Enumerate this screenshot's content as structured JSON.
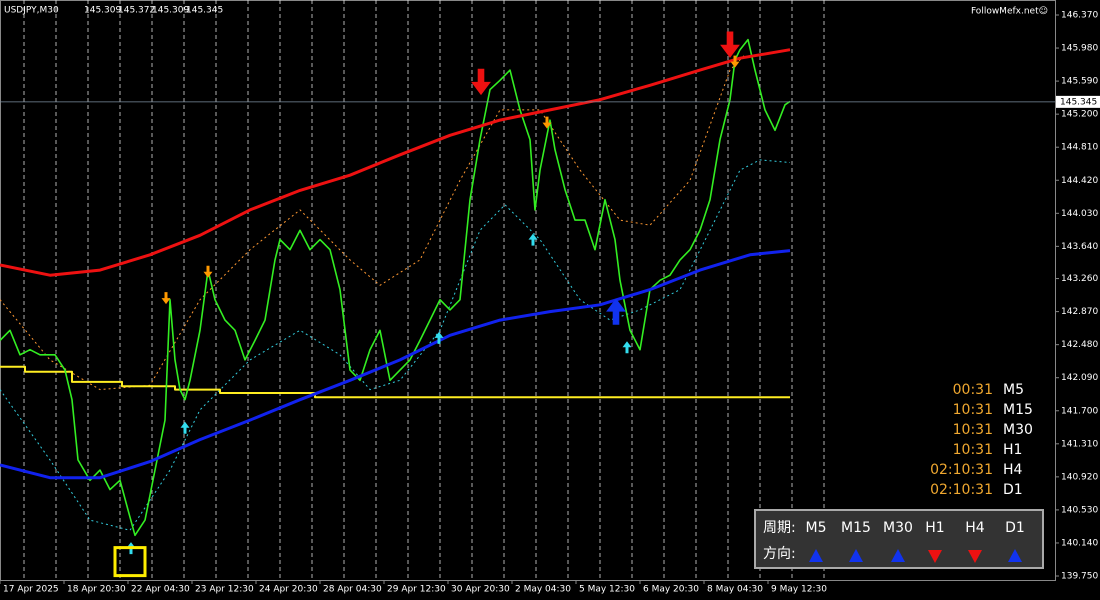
{
  "chart_data": {
    "type": "line",
    "symbol": "USDJPY,M30",
    "ohlc": [
      145.309,
      145.372,
      145.309,
      145.345
    ],
    "watermark": "FollowMefx.net☺",
    "current_price": 145.345,
    "xlim": [
      0,
      1055
    ],
    "ylim": [
      139.703,
      146.547
    ],
    "grid": true,
    "xticks": [
      {
        "value": 0,
        "label": "17 Apr 2025"
      },
      {
        "value": 64,
        "label": "18 Apr 20:30"
      },
      {
        "value": 128,
        "label": "22 Apr 04:30"
      },
      {
        "value": 192,
        "label": "23 Apr 12:30"
      },
      {
        "value": 256,
        "label": "24 Apr 20:30"
      },
      {
        "value": 320,
        "label": "28 Apr 04:30"
      },
      {
        "value": 384,
        "label": "29 Apr 12:30"
      },
      {
        "value": 448,
        "label": "30 Apr 20:30"
      },
      {
        "value": 512,
        "label": "2 May 04:30"
      },
      {
        "value": 576,
        "label": "5 May 12:30"
      },
      {
        "value": 640,
        "label": "6 May 20:30"
      },
      {
        "value": 704,
        "label": "8 May 04:30"
      },
      {
        "value": 768,
        "label": "9 May 12:30"
      }
    ],
    "yticks": [
      {
        "value": 146.37,
        "label": "146.370"
      },
      {
        "value": 145.98,
        "label": "145.980"
      },
      {
        "value": 145.59,
        "label": "145.590"
      },
      {
        "value": 145.2,
        "label": "145.200"
      },
      {
        "value": 144.81,
        "label": "144.810"
      },
      {
        "value": 144.42,
        "label": "144.420"
      },
      {
        "value": 144.03,
        "label": "144.030"
      },
      {
        "value": 143.64,
        "label": "143.640"
      },
      {
        "value": 143.26,
        "label": "143.260"
      },
      {
        "value": 142.87,
        "label": "142.870"
      },
      {
        "value": 142.48,
        "label": "142.480"
      },
      {
        "value": 142.09,
        "label": "142.090"
      },
      {
        "value": 141.7,
        "label": "141.700"
      },
      {
        "value": 141.31,
        "label": "141.310"
      },
      {
        "value": 140.92,
        "label": "140.920"
      },
      {
        "value": 140.53,
        "label": "140.530"
      },
      {
        "value": 140.14,
        "label": "140.140"
      },
      {
        "value": 139.75,
        "label": "139.750"
      }
    ],
    "series": [
      {
        "color": "#ff9933",
        "style": "dotted",
        "x": [
          0,
          50,
          100,
          150,
          200,
          250,
          300,
          350,
          380,
          420,
          460,
          500,
          540,
          580,
          620,
          650,
          690,
          730,
          745
        ],
        "values": [
          143.01,
          142.3,
          141.95,
          142.0,
          143.01,
          143.6,
          144.07,
          143.48,
          143.18,
          143.48,
          144.42,
          145.25,
          145.25,
          144.54,
          143.95,
          143.89,
          144.42,
          145.72,
          145.9
        ]
      },
      {
        "color": "#33ccdd",
        "style": "dotted",
        "x": [
          0,
          50,
          90,
          130,
          170,
          200,
          250,
          300,
          340,
          370,
          400,
          440,
          480,
          505,
          540,
          580,
          610,
          640,
          680,
          710,
          740,
          760,
          790
        ],
        "values": [
          141.95,
          141.12,
          140.41,
          140.29,
          141.0,
          141.71,
          142.3,
          142.65,
          142.36,
          141.95,
          142.06,
          142.65,
          143.83,
          144.13,
          143.72,
          143.01,
          142.77,
          142.89,
          143.13,
          143.83,
          144.54,
          144.66,
          144.63
        ]
      },
      {
        "color": "#ffee22",
        "style": "solid",
        "x": [
          0,
          25,
          25,
          72,
          72,
          122,
          122,
          175,
          175,
          220,
          220,
          315,
          315,
          790
        ],
        "values": [
          142.22,
          142.22,
          142.16,
          142.16,
          142.04,
          142.04,
          141.99,
          141.99,
          141.95,
          141.95,
          141.91,
          141.91,
          141.86,
          141.86
        ]
      },
      {
        "color": "#33ee22",
        "style": "price",
        "x": [
          0,
          10,
          20,
          30,
          40,
          55,
          65,
          72,
          78,
          90,
          100,
          110,
          120,
          128,
          135,
          145,
          155,
          165,
          170,
          175,
          180,
          185,
          190,
          200,
          208,
          215,
          225,
          235,
          245,
          255,
          265,
          275,
          280,
          290,
          300,
          310,
          320,
          330,
          340,
          350,
          360,
          370,
          380,
          390,
          400,
          410,
          420,
          430,
          440,
          450,
          460,
          470,
          480,
          490,
          500,
          510,
          520,
          530,
          535,
          540,
          550,
          555,
          565,
          575,
          585,
          595,
          605,
          615,
          620,
          630,
          640,
          650,
          660,
          670,
          680,
          690,
          700,
          710,
          720,
          730,
          735,
          740,
          748,
          755,
          765,
          775,
          785,
          790
        ],
        "values": [
          142.53,
          142.65,
          142.36,
          142.42,
          142.36,
          142.36,
          142.18,
          141.83,
          141.12,
          140.88,
          141.0,
          140.77,
          140.88,
          140.53,
          140.23,
          140.41,
          141.0,
          141.59,
          143.01,
          142.3,
          141.95,
          141.83,
          142.06,
          142.65,
          143.36,
          143.01,
          142.77,
          142.65,
          142.3,
          142.53,
          142.77,
          143.48,
          143.72,
          143.6,
          143.83,
          143.6,
          143.72,
          143.6,
          143.13,
          142.18,
          142.06,
          142.42,
          142.65,
          142.06,
          142.18,
          142.3,
          142.53,
          142.77,
          143.01,
          142.89,
          143.01,
          144.19,
          144.9,
          145.49,
          145.6,
          145.72,
          145.25,
          144.9,
          144.07,
          144.54,
          145.13,
          144.78,
          144.31,
          143.95,
          143.95,
          143.6,
          144.19,
          143.72,
          143.24,
          142.65,
          142.42,
          143.13,
          143.24,
          143.3,
          143.48,
          143.6,
          143.83,
          144.19,
          144.9,
          145.37,
          145.84,
          145.96,
          146.08,
          145.72,
          145.25,
          145.01,
          145.31,
          145.35
        ]
      },
      {
        "color": "#ee1111",
        "style": "thick",
        "x": [
          0,
          50,
          100,
          150,
          200,
          250,
          300,
          350,
          400,
          450,
          500,
          550,
          600,
          650,
          700,
          740,
          790
        ],
        "values": [
          143.42,
          143.3,
          143.36,
          143.54,
          143.77,
          144.07,
          144.3,
          144.48,
          144.72,
          144.95,
          145.13,
          145.25,
          145.37,
          145.54,
          145.72,
          145.86,
          145.96
        ]
      },
      {
        "color": "#1122ee",
        "style": "thick",
        "x": [
          0,
          50,
          100,
          150,
          200,
          250,
          300,
          350,
          400,
          450,
          500,
          550,
          600,
          650,
          700,
          750,
          790
        ],
        "values": [
          141.06,
          140.91,
          140.91,
          141.1,
          141.36,
          141.59,
          141.83,
          142.06,
          142.3,
          142.59,
          142.77,
          142.87,
          142.95,
          143.13,
          143.36,
          143.54,
          143.59
        ]
      }
    ],
    "signals": [
      {
        "kind": "down",
        "size": "small",
        "color": "#ff9900",
        "x": 166,
        "value": 143.03
      },
      {
        "kind": "down",
        "size": "small",
        "color": "#ff9900",
        "x": 208,
        "value": 143.34
      },
      {
        "kind": "down",
        "size": "small",
        "color": "#ff9900",
        "x": 547,
        "value": 145.1
      },
      {
        "kind": "down",
        "size": "small",
        "color": "#ff9900",
        "x": 735,
        "value": 145.82
      },
      {
        "kind": "up",
        "size": "small",
        "color": "#33ddee",
        "x": 131,
        "value": 140.08
      },
      {
        "kind": "up",
        "size": "small",
        "color": "#33ddee",
        "x": 185,
        "value": 141.5
      },
      {
        "kind": "up",
        "size": "small",
        "color": "#33ddee",
        "x": 439,
        "value": 142.56
      },
      {
        "kind": "up",
        "size": "small",
        "color": "#33ddee",
        "x": 533,
        "value": 143.72
      },
      {
        "kind": "up",
        "size": "small",
        "color": "#33ddee",
        "x": 627,
        "value": 142.45
      },
      {
        "kind": "down",
        "size": "big",
        "color": "#ee1111",
        "x": 481,
        "value": 145.58
      },
      {
        "kind": "down",
        "size": "big",
        "color": "#ee1111",
        "x": 730,
        "value": 146.02
      },
      {
        "kind": "up",
        "size": "big",
        "color": "#1133ee",
        "x": 616,
        "value": 142.87
      }
    ],
    "marker": {
      "color": "#ffee00",
      "x": 130,
      "value": 139.92
    }
  },
  "timers": [
    {
      "time": "00:31",
      "frame": "M5"
    },
    {
      "time": "10:31",
      "frame": "M15"
    },
    {
      "time": "10:31",
      "frame": "M30"
    },
    {
      "time": "10:31",
      "frame": "H1"
    },
    {
      "time": "02:10:31",
      "frame": "H4"
    },
    {
      "time": "02:10:31",
      "frame": "D1"
    }
  ],
  "direction_panel": {
    "period_label": "周期:",
    "frames": [
      "M5",
      "M15",
      "M30",
      "H1",
      "H4",
      "D1"
    ],
    "direction_label": "方向:",
    "directions": [
      "up",
      "up",
      "up",
      "down",
      "down",
      "up"
    ]
  }
}
